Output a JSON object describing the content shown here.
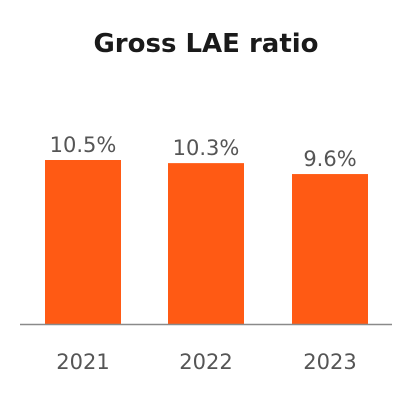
{
  "chart_data": {
    "type": "bar",
    "title": "Gross LAE ratio",
    "categories": [
      "2021",
      "2022",
      "2023"
    ],
    "values": [
      10.5,
      10.3,
      9.6
    ],
    "value_labels": [
      "10.5%",
      "10.3%",
      "9.6%"
    ],
    "ylim": [
      0,
      10.5
    ],
    "grid": false,
    "bar_color": "#FF5A14",
    "axis_color": "#8a8a8a"
  }
}
